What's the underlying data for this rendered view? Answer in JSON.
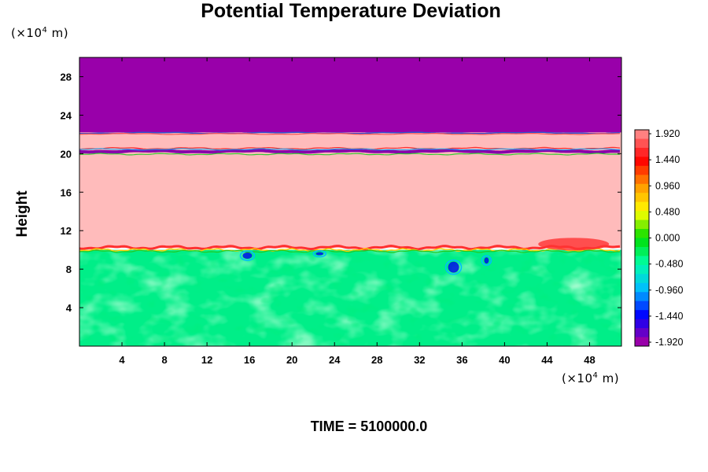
{
  "chart_data": {
    "type": "heatmap",
    "title": "Potential Temperature Deviation",
    "ylabel": "Height",
    "x_unit": {
      "prefix": "(×10",
      "exp": "4",
      "suffix": " m)"
    },
    "y_unit": {
      "prefix": "(×10",
      "exp": "4",
      "suffix": " m)"
    },
    "xlim": [
      0,
      51
    ],
    "ylim": [
      0,
      30
    ],
    "x_ticks": [
      "4",
      "8",
      "12",
      "16",
      "20",
      "24",
      "28",
      "32",
      "36",
      "40",
      "44",
      "48"
    ],
    "y_ticks": [
      "4",
      "8",
      "12",
      "16",
      "20",
      "24",
      "28"
    ],
    "colorbar": {
      "labels": [
        "1.920",
        "1.440",
        "0.960",
        "0.480",
        "0.000",
        "-0.480",
        "-0.960",
        "-1.440",
        "-1.920"
      ],
      "colors": [
        "#ff8080",
        "#ff0000",
        "#ff9900",
        "#ffff00",
        "#00dd00",
        "#00ffaa",
        "#00bbff",
        "#0000ff",
        "#9900aa"
      ]
    },
    "layers": [
      {
        "region": "upper layer",
        "y_range": [
          22.2,
          30
        ],
        "value": -1.92,
        "color": "#9900aa"
      },
      {
        "region": "thin interface",
        "y_range": [
          20,
          20.5
        ],
        "value": -1.92,
        "color": "#8800aa"
      },
      {
        "region": "middle layer",
        "y_range": [
          10.2,
          22.2
        ],
        "value": 1.92,
        "color": "#ffbbbb"
      },
      {
        "region": "lower turbulent layer",
        "y_range": [
          0,
          10
        ],
        "value": -0.2,
        "color": "#00ee88"
      }
    ],
    "grid": false,
    "legend": "right colorbar"
  },
  "footer": {
    "time_label": "TIME = 5100000.0"
  }
}
